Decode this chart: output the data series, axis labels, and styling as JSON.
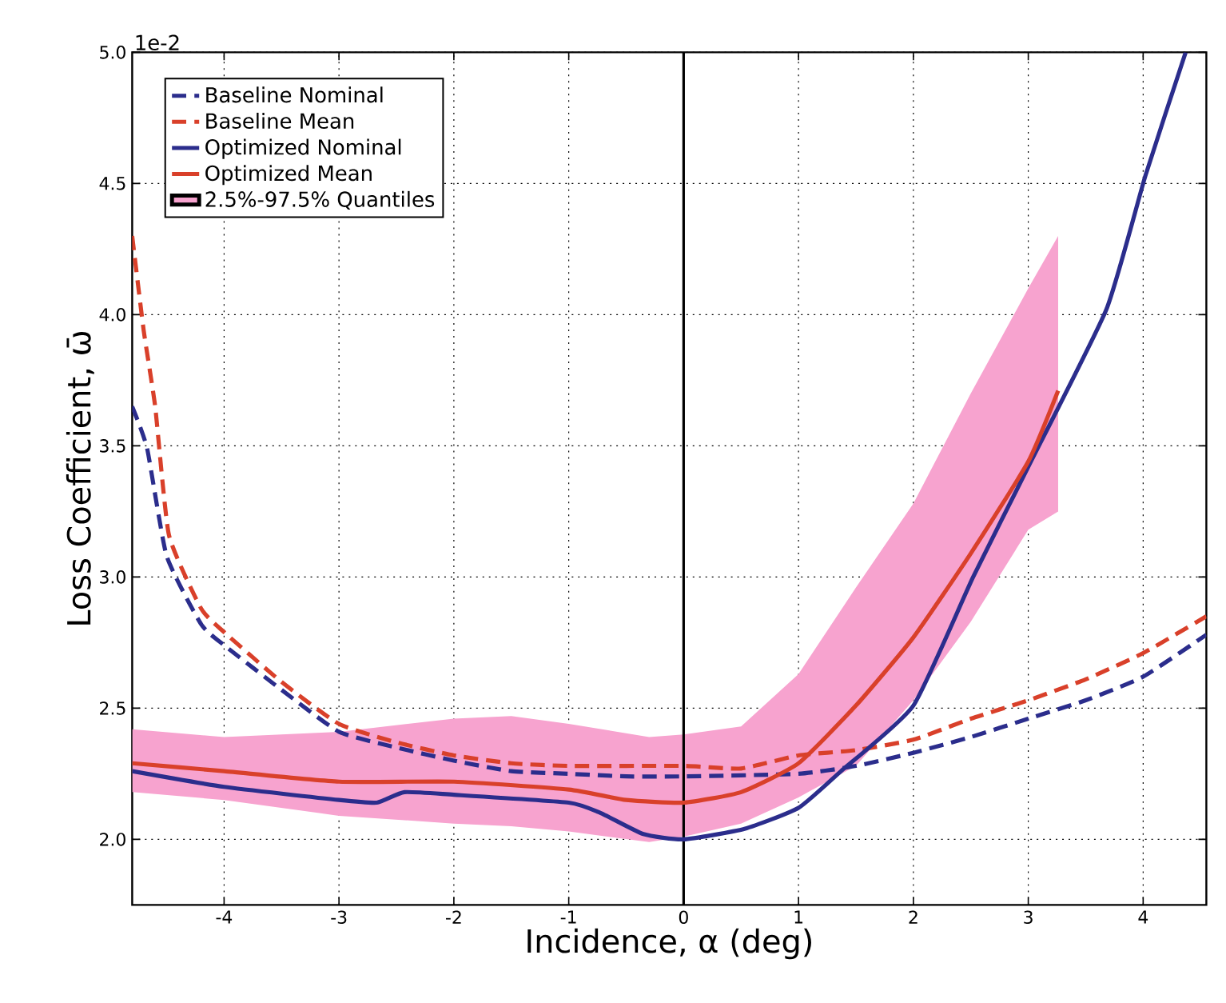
{
  "chart_data": {
    "type": "line",
    "xlabel": "Incidence, α (deg)",
    "ylabel": "Loss Coefficient, ω̄",
    "annotations": [
      "1e-2"
    ],
    "xlim": [
      -4.8,
      4.55
    ],
    "ylim": [
      1.75,
      5.0
    ],
    "xticks": [
      -4,
      -3,
      -2,
      -1,
      0,
      1,
      2,
      3,
      4
    ],
    "yticks": [
      {
        "value": 2.0,
        "label": "2.0"
      },
      {
        "value": 2.5,
        "label": "2.5"
      },
      {
        "value": 3.0,
        "label": "3.0"
      },
      {
        "value": 3.5,
        "label": "3.5"
      },
      {
        "value": 4.0,
        "label": "4.0"
      },
      {
        "value": 4.5,
        "label": "4.5"
      },
      {
        "value": 5.0,
        "label": "5.0"
      }
    ],
    "grid": true,
    "legend": "top left",
    "ref_lines": [
      {
        "axis": "x",
        "value": 0,
        "color": "#000000",
        "line_style": "solid"
      }
    ],
    "series": [
      {
        "name": "Baseline Nominal",
        "color": "#2b2d8c",
        "line_style": "dashed",
        "x": [
          -4.8,
          -4.67,
          -4.5,
          -4.2,
          -4,
          -3.5,
          -3,
          -2.5,
          -2,
          -1.5,
          -1,
          -0.5,
          0,
          1,
          1.5,
          2,
          2.5,
          3,
          3.5,
          4,
          4.55
        ],
        "values": [
          3.65,
          3.49,
          3.08,
          2.82,
          2.74,
          2.57,
          2.41,
          2.35,
          2.3,
          2.26,
          2.25,
          2.24,
          2.24,
          2.25,
          2.28,
          2.33,
          2.39,
          2.46,
          2.53,
          2.62,
          2.78
        ]
      },
      {
        "name": "Baseline Mean",
        "color": "#d9402a",
        "line_style": "dashed",
        "x": [
          -4.8,
          -4.7,
          -4.6,
          -4.48,
          -4.2,
          -4,
          -3.5,
          -3,
          -2.5,
          -2,
          -1.5,
          -1,
          0,
          0.5,
          1,
          1.5,
          2,
          2.5,
          3,
          3.5,
          4,
          4.55
        ],
        "values": [
          4.3,
          3.94,
          3.65,
          3.16,
          2.88,
          2.79,
          2.6,
          2.44,
          2.37,
          2.32,
          2.29,
          2.28,
          2.28,
          2.27,
          2.32,
          2.34,
          2.38,
          2.46,
          2.53,
          2.61,
          2.71,
          2.85
        ]
      },
      {
        "name": "Optimized Nominal",
        "color": "#2b2d8c",
        "line_style": "solid",
        "x": [
          -4.8,
          -4,
          -3,
          -2.67,
          -2.43,
          -2,
          -1,
          -0.72,
          -0.35,
          0,
          0.53,
          1,
          1.37,
          2,
          2.52,
          3,
          3.68,
          4.02,
          4.37
        ],
        "values": [
          2.26,
          2.2,
          2.15,
          2.14,
          2.18,
          2.17,
          2.14,
          2.1,
          2.02,
          2.0,
          2.04,
          2.12,
          2.26,
          2.51,
          3.0,
          3.42,
          4.02,
          4.53,
          5.0
        ]
      },
      {
        "name": "Optimized Mean",
        "color": "#d9402a",
        "line_style": "solid",
        "x": [
          -4.8,
          -4,
          -3,
          -2,
          -1,
          -0.5,
          0,
          0.5,
          1,
          1.5,
          2,
          2.5,
          3,
          3.26
        ],
        "values": [
          2.29,
          2.26,
          2.22,
          2.22,
          2.19,
          2.15,
          2.14,
          2.18,
          2.29,
          2.51,
          2.77,
          3.09,
          3.44,
          3.71
        ]
      },
      {
        "name": "2.5%-97.5% Quantiles",
        "type": "area",
        "color": "#f7a3cf",
        "x": [
          -4.8,
          -4,
          -3,
          -2,
          -1.5,
          -1,
          -0.3,
          0,
          0.5,
          1,
          1.5,
          2,
          2.5,
          3,
          3.26
        ],
        "values": [
          null,
          null,
          null,
          null,
          null,
          null,
          null,
          null,
          null,
          null,
          null,
          null,
          null,
          null,
          null
        ],
        "lower": [
          2.18,
          2.15,
          2.09,
          2.06,
          2.05,
          2.03,
          1.99,
          2.01,
          2.06,
          2.16,
          2.28,
          2.53,
          2.83,
          3.18,
          3.25
        ],
        "upper": [
          2.42,
          2.39,
          2.41,
          2.46,
          2.47,
          2.44,
          2.39,
          2.4,
          2.43,
          2.63,
          2.96,
          3.28,
          3.7,
          4.1,
          4.3
        ]
      }
    ]
  }
}
